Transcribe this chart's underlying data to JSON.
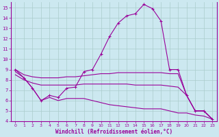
{
  "xlabel": "Windchill (Refroidissement éolien,°C)",
  "xlim": [
    -0.5,
    23.5
  ],
  "ylim": [
    4,
    15.5
  ],
  "xticks": [
    0,
    1,
    2,
    3,
    4,
    5,
    6,
    7,
    8,
    9,
    10,
    11,
    12,
    13,
    14,
    15,
    16,
    17,
    18,
    19,
    20,
    21,
    22,
    23
  ],
  "yticks": [
    4,
    5,
    6,
    7,
    8,
    9,
    10,
    11,
    12,
    13,
    14,
    15
  ],
  "bg_color": "#cce8f0",
  "line_color": "#990099",
  "grid_color": "#aacccc",
  "line1_x": [
    0,
    1,
    2,
    3,
    4,
    5,
    6,
    7,
    8,
    9,
    10,
    11,
    12,
    13,
    14,
    15,
    16,
    17,
    18,
    19,
    20,
    21,
    22,
    23
  ],
  "line1_y": [
    9.0,
    8.2,
    7.2,
    6.0,
    6.5,
    6.3,
    7.2,
    7.3,
    8.8,
    9.0,
    10.5,
    12.2,
    13.5,
    14.2,
    14.4,
    15.3,
    14.9,
    13.7,
    9.0,
    9.0,
    6.5,
    5.0,
    5.0,
    4.2
  ],
  "line2_x": [
    0,
    1,
    2,
    3,
    4,
    5,
    6,
    7,
    8,
    9,
    10,
    11,
    12,
    13,
    14,
    15,
    16,
    17,
    18,
    19,
    20,
    21,
    22,
    23
  ],
  "line2_y": [
    9.0,
    8.5,
    8.3,
    8.2,
    8.2,
    8.2,
    8.3,
    8.3,
    8.4,
    8.5,
    8.6,
    8.6,
    8.7,
    8.7,
    8.7,
    8.7,
    8.7,
    8.7,
    8.6,
    8.6,
    6.5,
    5.0,
    5.0,
    4.2
  ],
  "line3_x": [
    0,
    1,
    2,
    3,
    4,
    5,
    6,
    7,
    8,
    9,
    10,
    11,
    12,
    13,
    14,
    15,
    16,
    17,
    18,
    19,
    20,
    21,
    22,
    23
  ],
  "line3_y": [
    8.5,
    8.0,
    7.7,
    7.5,
    7.5,
    7.5,
    7.5,
    7.5,
    7.6,
    7.6,
    7.6,
    7.6,
    7.6,
    7.6,
    7.5,
    7.5,
    7.5,
    7.5,
    7.4,
    7.3,
    6.5,
    5.0,
    5.0,
    4.2
  ],
  "line4_x": [
    0,
    1,
    2,
    3,
    4,
    5,
    6,
    7,
    8,
    9,
    10,
    11,
    12,
    13,
    14,
    15,
    16,
    17,
    18,
    19,
    20,
    21,
    22,
    23
  ],
  "line4_y": [
    8.8,
    8.2,
    7.2,
    6.0,
    6.3,
    6.0,
    6.2,
    6.2,
    6.2,
    6.0,
    5.8,
    5.6,
    5.5,
    5.4,
    5.3,
    5.2,
    5.2,
    5.2,
    5.0,
    4.8,
    4.8,
    4.6,
    4.5,
    4.2
  ]
}
